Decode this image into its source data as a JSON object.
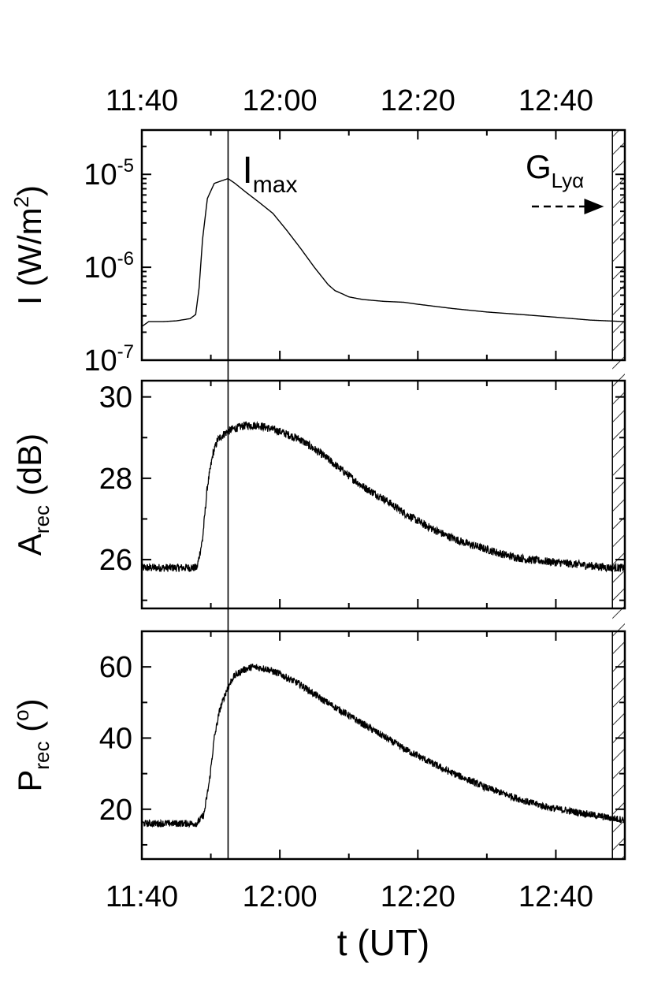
{
  "chart_data": {
    "type": "line",
    "shared_x": {
      "label": "t (UT)",
      "unit": "minutes after 11:40 UT",
      "range": [
        0,
        70
      ],
      "tick_values": [
        0,
        20,
        40,
        60
      ],
      "tick_labels": [
        "11:40",
        "12:00",
        "12:20",
        "12:40"
      ]
    },
    "annotations": {
      "imax_label": "I",
      "imax_sub": "max",
      "imax_t": 12.5,
      "g_label": "G",
      "g_sub": "Lyα",
      "g_start_t": 68.2
    },
    "panels": [
      {
        "id": "intensity",
        "ylabel_main": "I (W/m",
        "ylabel_sup": "2",
        "ylabel_end": ")",
        "yscale": "log",
        "ylim": [
          1e-07,
          3e-05
        ],
        "tick_values": [
          1e-07,
          1e-06,
          1e-05
        ],
        "tick_base": [
          "10",
          "10",
          "10"
        ],
        "tick_exp": [
          "-7",
          "-6",
          "-5"
        ],
        "noise": 0,
        "series": {
          "x": [
            0,
            1,
            3,
            5,
            7,
            7.8,
            8.3,
            8.8,
            9.5,
            10.5,
            11.5,
            12.5,
            13.5,
            15,
            17,
            19,
            21,
            23,
            25,
            27,
            28,
            29,
            30,
            32,
            35,
            38,
            40,
            45,
            50,
            55,
            60,
            65,
            70
          ],
          "y": [
            2.3e-07,
            2.6e-07,
            2.6e-07,
            2.65e-07,
            2.8e-07,
            3.1e-07,
            6e-07,
            2e-06,
            5.5e-06,
            8e-06,
            8.5e-06,
            9e-06,
            8e-06,
            6.5e-06,
            5e-06,
            3.8e-06,
            2.5e-06,
            1.6e-06,
            1e-06,
            6.5e-07,
            5.6e-07,
            5.2e-07,
            4.8e-07,
            4.5e-07,
            4.3e-07,
            4.2e-07,
            4e-07,
            3.6e-07,
            3.3e-07,
            3.1e-07,
            2.9e-07,
            2.7e-07,
            2.6e-07
          ]
        }
      },
      {
        "id": "amplitude",
        "ylabel_main": "A",
        "ylabel_sub": "rec",
        "ylabel_end": " (dB)",
        "yscale": "linear",
        "ylim": [
          24.8,
          30.4
        ],
        "tick_values": [
          26,
          28,
          30
        ],
        "tick_labels": [
          "26",
          "28",
          "30"
        ],
        "noise": 0.1,
        "series": {
          "x": [
            0,
            2,
            4,
            6,
            8,
            8.8,
            9.5,
            10.3,
            11,
            12,
            13,
            15,
            17,
            20,
            23,
            26,
            29,
            32,
            35,
            38,
            41,
            44,
            47,
            50,
            53,
            56,
            59,
            62,
            65,
            68,
            70
          ],
          "y": [
            25.8,
            25.8,
            25.8,
            25.8,
            25.8,
            26.5,
            27.8,
            28.6,
            28.95,
            29.1,
            29.2,
            29.3,
            29.3,
            29.15,
            28.95,
            28.6,
            28.2,
            27.8,
            27.5,
            27.15,
            26.85,
            26.6,
            26.4,
            26.25,
            26.1,
            26.0,
            25.95,
            25.9,
            25.85,
            25.8,
            25.8
          ]
        }
      },
      {
        "id": "phase",
        "ylabel_main": "P",
        "ylabel_sub": "rec",
        "ylabel_mid": " (",
        "ylabel_sup": "o",
        "ylabel_end": ")",
        "yscale": "linear",
        "ylim": [
          6,
          70
        ],
        "tick_values": [
          20,
          40,
          60
        ],
        "tick_labels": [
          "20",
          "40",
          "60"
        ],
        "noise": 1.0,
        "series": {
          "x": [
            0,
            2,
            4,
            6,
            8,
            9,
            9.8,
            10.5,
            11.3,
            12.2,
            13.2,
            14.5,
            16,
            18,
            20,
            23,
            26,
            29,
            32,
            35,
            38,
            41,
            44,
            47,
            50,
            53,
            56,
            59,
            62,
            65,
            68,
            70
          ],
          "y": [
            16,
            16,
            16,
            16,
            16,
            18.5,
            28,
            40,
            48,
            53,
            57,
            59,
            60,
            59.5,
            58,
            55,
            51,
            47.5,
            44,
            40.5,
            37,
            34,
            31,
            28.5,
            26,
            24,
            22,
            20.5,
            19.5,
            18.5,
            17.5,
            17
          ]
        }
      }
    ]
  }
}
